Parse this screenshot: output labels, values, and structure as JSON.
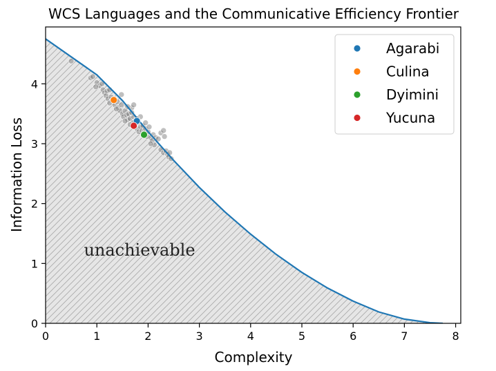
{
  "chart_data": {
    "type": "scatter",
    "title": "WCS Languages and the Communicative Efficiency Frontier",
    "xlabel": "Complexity",
    "ylabel": "Information Loss",
    "xlim": [
      0,
      8.1
    ],
    "ylim": [
      0,
      4.95
    ],
    "xticks": [
      "0",
      "1",
      "2",
      "3",
      "4",
      "5",
      "6",
      "7",
      "8"
    ],
    "yticks": [
      "0",
      "1",
      "2",
      "3",
      "4"
    ],
    "annotation": "unachievable",
    "frontier": {
      "color": "#1f77b4",
      "points": [
        [
          0,
          4.75
        ],
        [
          0.5,
          4.45
        ],
        [
          1,
          4.15
        ],
        [
          1.5,
          3.72
        ],
        [
          2,
          3.2
        ],
        [
          2.5,
          2.72
        ],
        [
          3,
          2.27
        ],
        [
          3.5,
          1.86
        ],
        [
          4,
          1.49
        ],
        [
          4.5,
          1.15
        ],
        [
          5,
          0.85
        ],
        [
          5.5,
          0.59
        ],
        [
          6,
          0.37
        ],
        [
          6.5,
          0.19
        ],
        [
          7,
          0.07
        ],
        [
          7.5,
          0.01
        ],
        [
          7.75,
          0
        ]
      ]
    },
    "background_points": {
      "color": "#808080",
      "points": [
        [
          0.5,
          4.38
        ],
        [
          0.88,
          4.1
        ],
        [
          0.92,
          4.12
        ],
        [
          1.0,
          4.02
        ],
        [
          1.05,
          3.97
        ],
        [
          0.98,
          3.95
        ],
        [
          1.1,
          4.0
        ],
        [
          1.12,
          3.9
        ],
        [
          1.15,
          3.85
        ],
        [
          1.2,
          3.88
        ],
        [
          1.25,
          3.9
        ],
        [
          1.18,
          3.8
        ],
        [
          1.22,
          3.75
        ],
        [
          1.28,
          3.78
        ],
        [
          1.3,
          3.72
        ],
        [
          1.25,
          3.68
        ],
        [
          1.35,
          3.65
        ],
        [
          1.4,
          3.7
        ],
        [
          1.42,
          3.6
        ],
        [
          1.45,
          3.55
        ],
        [
          1.48,
          3.65
        ],
        [
          1.5,
          3.5
        ],
        [
          1.55,
          3.55
        ],
        [
          1.52,
          3.45
        ],
        [
          1.58,
          3.48
        ],
        [
          1.6,
          3.4
        ],
        [
          1.62,
          3.5
        ],
        [
          1.65,
          3.42
        ],
        [
          1.68,
          3.6
        ],
        [
          1.7,
          3.35
        ],
        [
          1.72,
          3.45
        ],
        [
          1.75,
          3.3
        ],
        [
          1.78,
          3.25
        ],
        [
          1.8,
          3.35
        ],
        [
          1.82,
          3.2
        ],
        [
          1.85,
          3.28
        ],
        [
          1.88,
          3.22
        ],
        [
          1.9,
          3.3
        ],
        [
          1.92,
          3.18
        ],
        [
          1.95,
          3.25
        ],
        [
          1.98,
          3.12
        ],
        [
          2.0,
          3.2
        ],
        [
          2.02,
          3.28
        ],
        [
          2.05,
          3.1
        ],
        [
          2.08,
          3.05
        ],
        [
          2.1,
          3.15
        ],
        [
          2.12,
          2.98
        ],
        [
          2.15,
          3.1
        ],
        [
          2.2,
          3.08
        ],
        [
          2.25,
          3.18
        ],
        [
          2.3,
          3.22
        ],
        [
          2.32,
          3.12
        ],
        [
          2.25,
          2.9
        ],
        [
          2.3,
          2.85
        ],
        [
          2.35,
          2.88
        ],
        [
          2.38,
          2.82
        ],
        [
          2.4,
          2.78
        ],
        [
          2.42,
          2.85
        ],
        [
          2.45,
          2.75
        ],
        [
          1.48,
          3.82
        ],
        [
          1.72,
          3.65
        ],
        [
          1.6,
          3.62
        ],
        [
          1.38,
          3.58
        ],
        [
          1.55,
          3.38
        ],
        [
          1.65,
          3.32
        ],
        [
          1.85,
          3.45
        ],
        [
          1.95,
          3.35
        ],
        [
          2.05,
          3.0
        ],
        [
          1.78,
          3.42
        ],
        [
          1.68,
          3.52
        ]
      ]
    },
    "series": [
      {
        "name": "Agarabi",
        "color": "#1f77b4",
        "x": 1.78,
        "y": 3.38
      },
      {
        "name": "Culina",
        "color": "#ff7f0e",
        "x": 1.33,
        "y": 3.73
      },
      {
        "name": "Dyimini",
        "color": "#2ca02c",
        "x": 1.92,
        "y": 3.15
      },
      {
        "name": "Yucuna",
        "color": "#d62728",
        "x": 1.72,
        "y": 3.3
      }
    ],
    "legend_position": "top-right",
    "grid": false
  }
}
